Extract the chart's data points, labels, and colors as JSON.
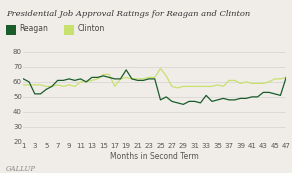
{
  "title": "Presidential Job Approval Ratings for Reagan and Clinton",
  "xlabel": "Months in Second Term",
  "xlim": [
    1,
    47
  ],
  "ylim": [
    20,
    80
  ],
  "yticks": [
    20,
    30,
    40,
    50,
    60,
    70,
    80
  ],
  "xticks": [
    1,
    3,
    5,
    7,
    9,
    11,
    13,
    15,
    17,
    19,
    21,
    23,
    25,
    27,
    29,
    31,
    33,
    35,
    37,
    39,
    41,
    43,
    45,
    47
  ],
  "reagan_color": "#1a5c2a",
  "clinton_color": "#c8e06e",
  "background_color": "#f0ede8",
  "gallup_label": "GALLUP",
  "title_fontsize": 6.0,
  "axis_fontsize": 5.5,
  "tick_fontsize": 5.0,
  "legend_fontsize": 5.5,
  "reagan_x": [
    1,
    2,
    3,
    4,
    5,
    6,
    7,
    8,
    9,
    10,
    11,
    12,
    13,
    14,
    15,
    16,
    17,
    18,
    19,
    20,
    21,
    22,
    23,
    24,
    25,
    26,
    27,
    28,
    29,
    30,
    31,
    32,
    33,
    34,
    35,
    36,
    37,
    38,
    39,
    40,
    41,
    42,
    43,
    44,
    45,
    46,
    47
  ],
  "reagan_y": [
    62,
    60,
    52,
    52,
    55,
    57,
    61,
    61,
    62,
    61,
    62,
    60,
    63,
    63,
    64,
    63,
    62,
    62,
    68,
    62,
    61,
    61,
    62,
    62,
    48,
    50,
    47,
    46,
    45,
    47,
    47,
    46,
    51,
    47,
    48,
    49,
    48,
    48,
    49,
    49,
    50,
    50,
    53,
    53,
    52,
    51,
    63
  ],
  "clinton_x": [
    1,
    2,
    3,
    4,
    5,
    6,
    7,
    8,
    9,
    10,
    11,
    12,
    13,
    14,
    15,
    16,
    17,
    18,
    19,
    20,
    21,
    22,
    23,
    24,
    25,
    26,
    27,
    28,
    29,
    30,
    31,
    32,
    33,
    34,
    35,
    36,
    37,
    38,
    39,
    40,
    41,
    42,
    43,
    44,
    45,
    46,
    47
  ],
  "clinton_y": [
    58,
    58,
    58,
    58,
    57,
    57,
    58,
    57,
    58,
    57,
    60,
    60,
    61,
    62,
    65,
    65,
    57,
    62,
    63,
    62,
    62,
    62,
    63,
    63,
    69,
    64,
    57,
    56,
    57,
    57,
    57,
    57,
    57,
    57,
    58,
    57,
    61,
    61,
    59,
    60,
    59,
    59,
    59,
    60,
    62,
    62,
    63
  ]
}
